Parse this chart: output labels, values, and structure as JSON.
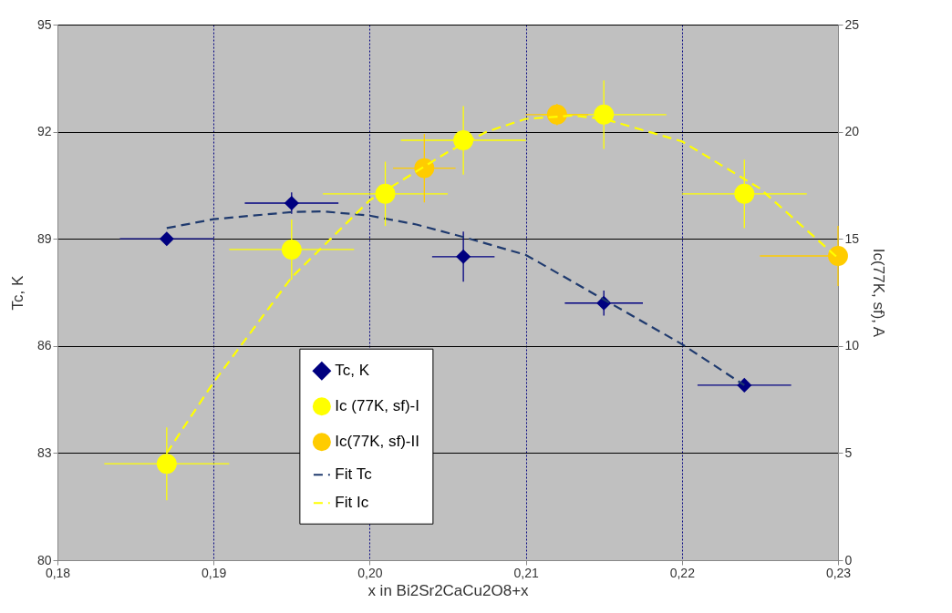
{
  "chart_data": {
    "type": "scatter",
    "xlabel": "x in Bi2Sr2CaCu2O8+x",
    "ylabel": "Tc, K",
    "y2label": "Ic(77K, sf), A",
    "xlim": [
      0.18,
      0.23
    ],
    "xticks": [
      {
        "value": 0.18,
        "label": "0,18"
      },
      {
        "value": 0.19,
        "label": "0,19"
      },
      {
        "value": 0.2,
        "label": "0,20"
      },
      {
        "value": 0.21,
        "label": "0,21"
      },
      {
        "value": 0.22,
        "label": "0,22"
      },
      {
        "value": 0.23,
        "label": "0,23"
      }
    ],
    "ylim": [
      80,
      95
    ],
    "yticks": [
      80,
      83,
      86,
      89,
      92,
      95
    ],
    "y2lim": [
      0,
      25
    ],
    "y2ticks": [
      0,
      5,
      10,
      15,
      20,
      25
    ],
    "grid": true,
    "legend": "bottom",
    "series": [
      {
        "name": "Tc, K",
        "marker": "diamond",
        "color": "#000080",
        "x": [
          0.187,
          0.195,
          0.206,
          0.215,
          0.224
        ],
        "values": [
          89.0,
          90.0,
          88.5,
          87.2,
          84.9
        ],
        "errors": [
          null,
          0.3,
          0.7,
          0.35,
          null
        ],
        "xerrors": [
          0.003,
          0.003,
          0.002,
          0.0025,
          0.003
        ]
      },
      {
        "name": "Ic (77K, sf)-I",
        "marker": "circle",
        "axis": "y2",
        "color": "#ffff00",
        "x": [
          0.187,
          0.195,
          0.201,
          0.206,
          0.215,
          0.224
        ],
        "values": [
          4.5,
          14.5,
          17.1,
          19.6,
          20.8,
          17.1
        ],
        "errors": [
          1.7,
          1.4,
          1.5,
          1.6,
          1.6,
          1.6
        ],
        "xerrors": [
          0.004,
          0.004,
          0.004,
          0.004,
          0.004,
          0.004
        ]
      },
      {
        "name": "Ic(77K, sf)-II",
        "marker": "circle",
        "axis": "y2",
        "color": "#ffcc00",
        "x": [
          0.2035,
          0.212,
          0.23
        ],
        "values": [
          18.3,
          20.8,
          14.2
        ],
        "errors": [
          1.6,
          0.5,
          1.4
        ],
        "xerrors": [
          0.002,
          0.002,
          [
            0.225,
            0.23
          ]
        ]
      },
      {
        "name": "Fit Tc",
        "type": "line",
        "marker": "none",
        "line_style": "dashed",
        "color": "#1f3a6e",
        "x": [
          0.187,
          0.19,
          0.195,
          0.197,
          0.2,
          0.203,
          0.206,
          0.21,
          0.215,
          0.22,
          0.224
        ],
        "values": [
          89.3,
          89.55,
          89.75,
          89.77,
          89.65,
          89.4,
          89.05,
          88.55,
          87.3,
          86.05,
          84.9
        ]
      },
      {
        "name": "Fit Ic",
        "type": "line",
        "marker": "none",
        "line_style": "dashed",
        "axis": "y2",
        "color": "#ffff00",
        "x": [
          0.187,
          0.19,
          0.195,
          0.2,
          0.205,
          0.2075,
          0.21,
          0.213,
          0.215,
          0.22,
          0.225,
          0.23
        ],
        "values": [
          5.0,
          8.3,
          13.2,
          16.8,
          19.05,
          20.0,
          20.6,
          20.75,
          20.6,
          19.55,
          17.35,
          14.1
        ]
      }
    ]
  }
}
